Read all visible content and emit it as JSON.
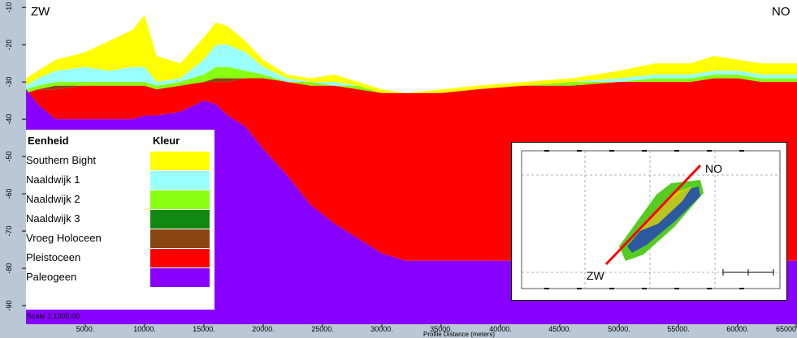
{
  "chart_data": {
    "type": "area",
    "title": "",
    "xlabel": "Profile Distance (meters)",
    "ylabel": "",
    "xlim": [
      0,
      65000
    ],
    "ylim": [
      -95,
      -8
    ],
    "x_ticks": [
      "5000.",
      "10000.",
      "15000.",
      "20000.",
      "25000.",
      "30000.",
      "35000.",
      "40000.",
      "45000.",
      "50000.",
      "55000.",
      "60000.",
      "65000"
    ],
    "y_ticks": [
      "-10",
      "-20",
      "-30",
      "-40",
      "-50",
      "-60",
      "-70",
      "-80",
      "-90"
    ],
    "grid": false,
    "x": [
      0,
      1000,
      2500,
      5000,
      7000,
      9000,
      10000,
      11000,
      13000,
      15000,
      16000,
      17000,
      18500,
      20000,
      22000,
      24000,
      26000,
      28000,
      30000,
      32000,
      35000,
      38000,
      42000,
      46000,
      50000,
      53000,
      56000,
      58000,
      60000,
      62000,
      65000
    ],
    "series": [
      {
        "name": "Southern Bight",
        "color": "#ffff00",
        "values": [
          -29,
          -27,
          -24,
          -22,
          -19,
          -16,
          -12,
          -23,
          -25,
          -18,
          -14,
          -15,
          -19,
          -24,
          -28,
          -29,
          -28,
          -30,
          -32,
          -33,
          -32,
          -31,
          -30,
          -29,
          -27,
          -25,
          -25,
          -23,
          -24,
          -25,
          -25
        ]
      },
      {
        "name": "Naaldwijk 1",
        "color": "#99ffff",
        "values": [
          -31,
          -29,
          -27,
          -26,
          -27,
          -26,
          -26,
          -30,
          -29,
          -24,
          -20,
          -20,
          -22,
          -26,
          -29,
          -30,
          -30,
          -31,
          -33,
          -33,
          -33,
          -32,
          -31,
          -30,
          -29,
          -28,
          -28,
          -27,
          -27,
          -28,
          -28
        ]
      },
      {
        "name": "Naaldwijk 2",
        "color": "#88ff11",
        "values": [
          -32,
          -31,
          -30,
          -30,
          -30,
          -30,
          -30,
          -31,
          -30,
          -28,
          -26,
          -26,
          -27,
          -28,
          -30,
          -30,
          -31,
          -31,
          -33,
          -33,
          -33,
          -32,
          -31,
          -30,
          -30,
          -29,
          -29,
          -28,
          -28,
          -29,
          -29
        ]
      },
      {
        "name": "Naaldwijk 3",
        "color": "#118811",
        "values": [
          -33,
          -32,
          -31,
          -31,
          -31,
          -31,
          -31,
          -32,
          -31,
          -30,
          -29,
          -29,
          -29,
          -30,
          -30,
          -31,
          -31,
          -32,
          -33,
          -33,
          -33,
          -32,
          -31,
          -31,
          -30,
          -30,
          -30,
          -29,
          -29,
          -30,
          -30
        ]
      },
      {
        "name": "Vroeg Holoceen",
        "color": "#8b4513",
        "values": [
          -33,
          -32,
          -31,
          -31,
          -31,
          -31,
          -31,
          -32,
          -31,
          -30,
          -29,
          -29,
          -29,
          -30,
          -30,
          -31,
          -31,
          -32,
          -33,
          -33,
          -33,
          -32,
          -31,
          -31,
          -30,
          -30,
          -30,
          -29,
          -29,
          -30,
          -30
        ]
      },
      {
        "name": "Pleistoceen",
        "color": "#ff0000",
        "values": [
          -33,
          -32,
          -32,
          -31,
          -31,
          -31,
          -31,
          -32,
          -31,
          -30,
          -30,
          -30,
          -29,
          -29,
          -30,
          -31,
          -31,
          -32,
          -33,
          -33,
          -33,
          -32,
          -31,
          -31,
          -30,
          -30,
          -30,
          -29,
          -29,
          -30,
          -30
        ]
      },
      {
        "name": "Paleogeen",
        "color": "#8800ff",
        "values": [
          -32,
          -36,
          -40,
          -40,
          -40,
          -40,
          -39,
          -39,
          -38,
          -35,
          -36,
          -39,
          -42,
          -48,
          -55,
          -63,
          -68,
          -72,
          -76,
          -78,
          -78,
          -78,
          -78,
          -78,
          -78,
          -78,
          -78,
          -78,
          -78,
          -78,
          -78
        ]
      }
    ]
  },
  "labels": {
    "left_end": "ZW",
    "right_end": "NO",
    "scale": "Scale 1:1000.00"
  },
  "legend": {
    "header_unit": "Eenheid",
    "header_color": "Kleur"
  },
  "inset": {
    "label_ne": "NO",
    "label_sw": "ZW"
  }
}
